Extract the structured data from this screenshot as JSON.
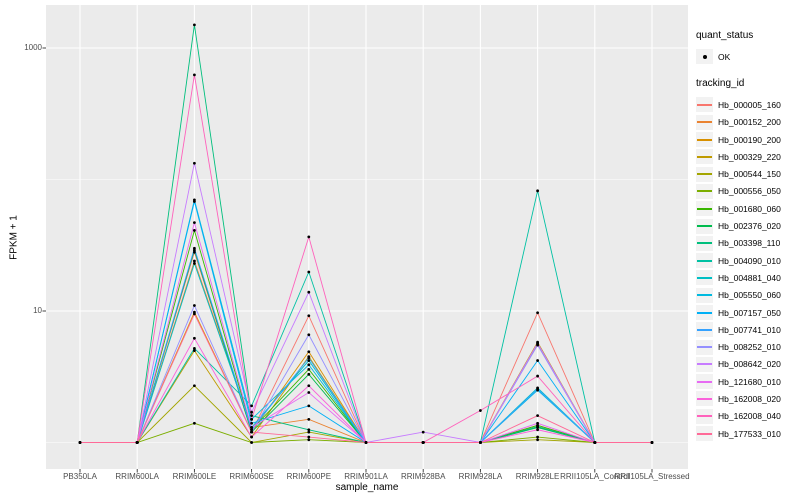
{
  "figure": {
    "background": "#FFFFFF",
    "panel_background": "#EBEBEB",
    "gridline_color": "#FFFFFF",
    "tick_color": "#333333",
    "tick_label_color": "#4D4D4D",
    "point_color": "#000000"
  },
  "chart_data": {
    "type": "line",
    "title": "",
    "xlabel": "sample_name",
    "ylabel": "FPKM + 1",
    "y_scale": "log10",
    "ylim": [
      0.7,
      2100
    ],
    "grid": true,
    "legend_position": "right",
    "y_ticks": [
      {
        "label": "1000",
        "value": 1000
      },
      {
        "label": "10",
        "value": 10
      }
    ],
    "y_minor_gridlines": [
      100,
      1
    ],
    "categories": [
      "PB350LA",
      "RRIM600LA",
      "RRIM600LE",
      "RRIM600SE",
      "RRIM600PE",
      "RRIM901LA",
      "RRIM928BA",
      "RRIM928LA",
      "RRIM928LE",
      "RRII105LA_Control",
      "RRII105LA_Stressed"
    ],
    "series": [
      {
        "name": "Hb_000005_160",
        "color": "#F8766D",
        "values": [
          1,
          1,
          28,
          1.2,
          9.2,
          1,
          1,
          1,
          9.7,
          1,
          1
        ]
      },
      {
        "name": "Hb_000152_200",
        "color": "#EA8331",
        "values": [
          1,
          1,
          24,
          1.3,
          1.5,
          1,
          1,
          1,
          1.35,
          1,
          1
        ]
      },
      {
        "name": "Hb_000190_200",
        "color": "#D89000",
        "values": [
          1,
          1,
          9.8,
          1.2,
          4.9,
          1,
          1,
          1,
          5.6,
          1,
          1
        ]
      },
      {
        "name": "Hb_000329_220",
        "color": "#C09B00",
        "values": [
          1,
          1,
          5.0,
          1.1,
          4.5,
          1,
          1,
          1,
          5.8,
          1,
          1
        ]
      },
      {
        "name": "Hb_000544_150",
        "color": "#A3A500",
        "values": [
          1,
          1,
          2.7,
          1,
          1.2,
          1,
          1,
          1,
          1.05,
          1,
          1
        ]
      },
      {
        "name": "Hb_000556_050",
        "color": "#7CAE00",
        "values": [
          1,
          1,
          1.4,
          1,
          1.05,
          1,
          1,
          1,
          1.1,
          1,
          1
        ]
      },
      {
        "name": "Hb_001680_060",
        "color": "#39B600",
        "values": [
          1,
          1,
          41,
          1.25,
          3.6,
          1,
          1,
          1,
          1.35,
          1,
          1
        ]
      },
      {
        "name": "Hb_002376_020",
        "color": "#00BB4E",
        "values": [
          1,
          1,
          29,
          1.2,
          3.3,
          1,
          1,
          1,
          1.3,
          1,
          1
        ]
      },
      {
        "name": "Hb_003398_110",
        "color": "#00BF7D",
        "values": [
          1,
          1,
          1500,
          1.6,
          1.25,
          1,
          1,
          1,
          1.32,
          1,
          1
        ]
      },
      {
        "name": "Hb_004090_010",
        "color": "#00C1A3",
        "values": [
          1,
          1,
          5.2,
          1.9,
          19.8,
          1,
          1,
          1,
          82,
          1,
          1
        ]
      },
      {
        "name": "Hb_004881_040",
        "color": "#00BFC4",
        "values": [
          1,
          1,
          23,
          1.3,
          4.2,
          1,
          1,
          1,
          2.6,
          1,
          1
        ]
      },
      {
        "name": "Hb_005550_060",
        "color": "#00BAE0",
        "values": [
          1,
          1,
          70,
          1.5,
          3.9,
          1,
          1,
          1,
          2.5,
          1,
          1
        ]
      },
      {
        "name": "Hb_007157_050",
        "color": "#00B0F6",
        "values": [
          1,
          1,
          68,
          1.4,
          1.9,
          1,
          1,
          1,
          4.2,
          1,
          1
        ]
      },
      {
        "name": "Hb_007741_010",
        "color": "#35A2FF",
        "values": [
          1,
          1,
          30,
          1.25,
          4.4,
          1,
          1,
          1,
          2.55,
          1,
          1
        ]
      },
      {
        "name": "Hb_008252_010",
        "color": "#9590FF",
        "values": [
          1,
          1,
          11,
          1.2,
          6.6,
          1,
          1,
          1,
          5.5,
          1,
          1
        ]
      },
      {
        "name": "Hb_008642_020",
        "color": "#C77CFF",
        "values": [
          1,
          1,
          133,
          1.7,
          13.9,
          1,
          1.2,
          1,
          5.7,
          1,
          1
        ]
      },
      {
        "name": "Hb_121680_010",
        "color": "#E76BF3",
        "values": [
          1,
          1,
          47,
          1.3,
          2.4,
          1,
          1,
          1,
          1.4,
          1,
          1
        ]
      },
      {
        "name": "Hb_162008_020",
        "color": "#FA62DB",
        "values": [
          1,
          1,
          6.2,
          1.1,
          2.7,
          1,
          1,
          1,
          1.25,
          1,
          1
        ]
      },
      {
        "name": "Hb_162008_040",
        "color": "#FF62BC",
        "values": [
          1,
          1,
          625,
          1.5,
          36.6,
          1,
          1,
          1.75,
          3.2,
          1,
          1
        ]
      },
      {
        "name": "Hb_177533_010",
        "color": "#FF6A98",
        "values": [
          1,
          1,
          9.5,
          1.2,
          1.1,
          1,
          1,
          1,
          1.6,
          1,
          1
        ]
      }
    ]
  },
  "legend": {
    "quant_status": {
      "title": "quant_status",
      "items": [
        {
          "label": "OK",
          "symbol": "point"
        }
      ]
    },
    "tracking_id": {
      "title": "tracking_id"
    }
  }
}
